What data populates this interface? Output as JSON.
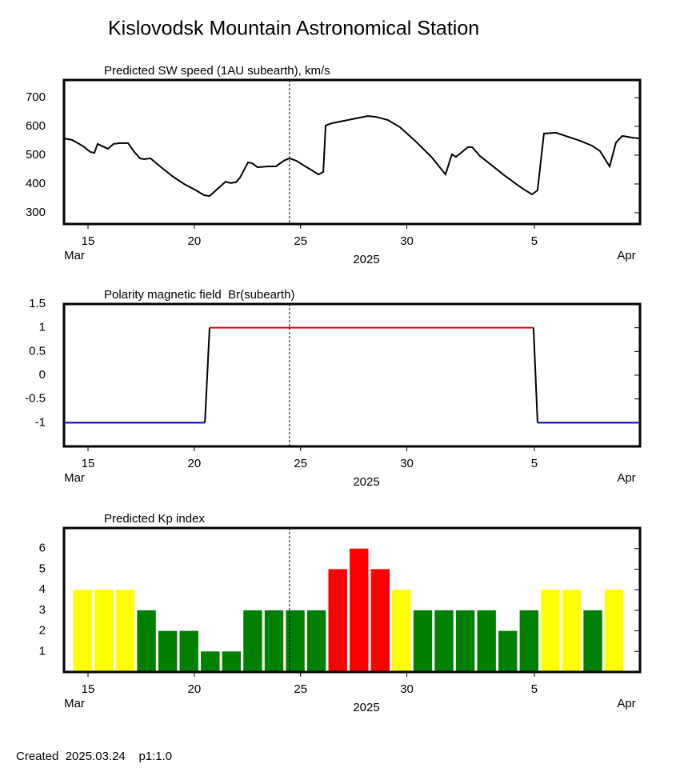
{
  "title": "Kislovodsk Mountain Astronomical Station",
  "footer": "Created  2025.03.24    p1:1.0",
  "chart_data": [
    {
      "type": "line",
      "title": "Predicted SW speed (1AU subearth), km/s",
      "color": "#000000",
      "x": [
        13.87,
        14.25,
        14.77,
        15.11,
        15.3,
        15.45,
        15.68,
        15.94,
        16.2,
        16.51,
        16.88,
        17.18,
        17.45,
        17.63,
        17.94,
        18.39,
        18.95,
        19.52,
        20.08,
        20.46,
        20.72,
        21.02,
        21.47,
        21.7,
        21.96,
        22.15,
        22.53,
        22.72,
        22.98,
        23.47,
        23.84,
        24.22,
        24.48,
        24.79,
        25.16,
        25.54,
        25.84,
        26.07,
        26.18,
        26.48,
        27.42,
        28.17,
        28.55,
        29.11,
        29.68,
        30.13,
        30.43,
        31.18,
        31.82,
        32.12,
        32.31,
        32.88,
        33.07,
        33.44,
        34.01,
        34.57,
        35.14,
        35.51,
        35.89,
        36.15,
        36.45,
        37.02,
        37.58,
        38.15,
        38.71,
        39.09,
        39.54,
        39.84,
        40.14,
        40.59,
        40.97
      ],
      "values": [
        558,
        553,
        531,
        511,
        508,
        539,
        531,
        522,
        539,
        542,
        542,
        511,
        489,
        486,
        489,
        461,
        428,
        400,
        378,
        361,
        358,
        378,
        408,
        403,
        406,
        422,
        475,
        472,
        458,
        461,
        461,
        481,
        489,
        481,
        464,
        447,
        433,
        442,
        603,
        611,
        625,
        636,
        633,
        622,
        597,
        567,
        547,
        492,
        433,
        503,
        494,
        528,
        528,
        497,
        464,
        431,
        400,
        381,
        364,
        378,
        575,
        578,
        564,
        550,
        533,
        514,
        461,
        544,
        567,
        561,
        558
      ],
      "xlim": [
        13.87,
        40.97
      ],
      "ylim": [
        261,
        761
      ],
      "yticks": [
        300,
        400,
        500,
        600,
        700
      ],
      "xticks": [
        15,
        20,
        25,
        30,
        {
          "value": 36,
          "label": "5"
        }
      ],
      "annotations": [
        "Mar",
        "2025",
        "Apr"
      ],
      "marker_x": 24.48
    },
    {
      "type": "step",
      "title": "Polarity magnetic field  Br(subearth)",
      "positive_color": "#dd0000",
      "negative_color": "#0000b0",
      "x": [
        13.87,
        20.5,
        20.72,
        35.96,
        36.15,
        40.97
      ],
      "values": [
        -1,
        -1,
        1,
        1,
        -1,
        -1
      ],
      "xlim": [
        13.87,
        40.97
      ],
      "ylim": [
        -1.5,
        1.5
      ],
      "yticks": [
        1.5,
        1,
        0.5,
        0,
        -0.5,
        -1
      ],
      "xticks": [
        15,
        20,
        25,
        30,
        {
          "value": 36,
          "label": "5"
        }
      ],
      "annotations": [
        "Mar",
        "2025",
        "Apr"
      ],
      "marker_x": 24.48
    },
    {
      "type": "bar",
      "title": "Predicted Kp index",
      "x": [
        14.75,
        15.75,
        16.75,
        17.75,
        18.75,
        19.75,
        20.75,
        21.75,
        22.75,
        23.75,
        24.75,
        25.75,
        26.75,
        27.75,
        28.75,
        29.75,
        30.75,
        31.75,
        32.75,
        33.75,
        34.75,
        35.75,
        36.75,
        37.75,
        38.75,
        39.75
      ],
      "values": [
        4,
        4,
        4,
        3,
        2,
        2,
        1,
        1,
        3,
        3,
        3,
        3,
        5,
        6,
        5,
        4,
        3,
        3,
        3,
        3,
        2,
        3,
        4,
        4,
        3,
        4
      ],
      "colors": [
        "#ffff00",
        "#ffff00",
        "#ffff00",
        "#008000",
        "#008000",
        "#008000",
        "#008000",
        "#008000",
        "#008000",
        "#008000",
        "#008000",
        "#008000",
        "#ff0000",
        "#ff0000",
        "#ff0000",
        "#ffff00",
        "#008000",
        "#008000",
        "#008000",
        "#008000",
        "#008000",
        "#008000",
        "#ffff00",
        "#ffff00",
        "#008000",
        "#ffff00"
      ],
      "xlim": [
        13.87,
        40.97
      ],
      "ylim": [
        0,
        7
      ],
      "yticks": [
        1,
        2,
        3,
        4,
        5,
        6
      ],
      "xticks": [
        15,
        20,
        25,
        30,
        {
          "value": 36,
          "label": "5"
        }
      ],
      "annotations": [
        "Mar",
        "2025",
        "Apr"
      ],
      "marker_x": 24.48
    }
  ]
}
